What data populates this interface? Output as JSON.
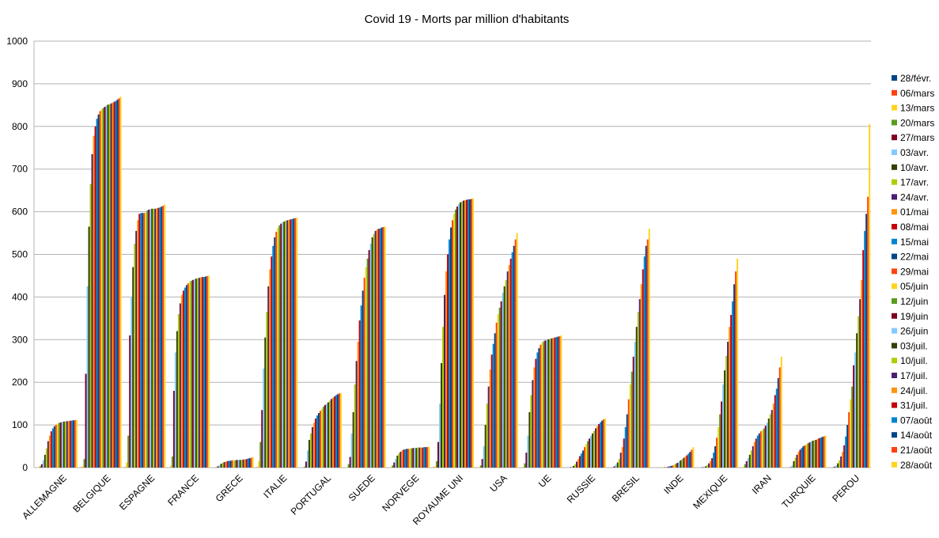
{
  "chart_data": {
    "type": "bar",
    "title": "Covid 19 - Morts par million d'habitants",
    "xlabel": "",
    "ylabel": "",
    "ylim": [
      0,
      1000
    ],
    "yticks": [
      0,
      100,
      200,
      300,
      400,
      500,
      600,
      700,
      800,
      900,
      1000
    ],
    "grid": true,
    "legend_position": "right",
    "categories": [
      "ALLEMAGNE",
      "BELGIQUE",
      "ESPAGNE",
      "FRANCE",
      "GRECE",
      "ITALIE",
      "PORTUGAL",
      "SUEDE",
      "NORVEGE",
      "ROYAUME UNI",
      "USA",
      "UE",
      "RUSSIE",
      "BRESIL",
      "INDE",
      "MEXIQUE",
      "IRAN",
      "TURQUIE",
      "PEROU"
    ],
    "series_names": [
      "28/févr.",
      "06/mars",
      "13/mars",
      "20/mars",
      "27/mars",
      "03/avr.",
      "10/avr.",
      "17/avr.",
      "24/avr.",
      "01/mai",
      "08/mai",
      "15/mai",
      "22/mai",
      "29/mai",
      "05/juin",
      "12/juin",
      "19/juin",
      "26/juin",
      "03/juil.",
      "10/juil.",
      "17/juil.",
      "24/juil.",
      "31/juil.",
      "07/août",
      "14/août",
      "21/août",
      "28/août"
    ],
    "series_colors": [
      "#004586",
      "#ff420e",
      "#ffd320",
      "#579d1c",
      "#7e0021",
      "#83caff",
      "#314004",
      "#aecf00",
      "#4b1f6f",
      "#ff950e",
      "#c5000b",
      "#0084d1",
      "#004586",
      "#ff420e",
      "#ffd320",
      "#579d1c",
      "#7e0021",
      "#83caff",
      "#314004",
      "#aecf00",
      "#4b1f6f",
      "#ff950e",
      "#c5000b",
      "#0084d1",
      "#004586",
      "#ff420e",
      "#ffd320"
    ],
    "values_by_category": [
      [
        0,
        0,
        1,
        3,
        8,
        17,
        30,
        45,
        62,
        75,
        85,
        92,
        97,
        100,
        103,
        105,
        106,
        107,
        108,
        108,
        109,
        109,
        110,
        110,
        111,
        111,
        112
      ],
      [
        0,
        1,
        3,
        20,
        220,
        425,
        565,
        665,
        735,
        778,
        800,
        818,
        828,
        836,
        840,
        843,
        846,
        849,
        851,
        852,
        854,
        856,
        858,
        860,
        863,
        866,
        870
      ],
      [
        0,
        1,
        12,
        75,
        310,
        400,
        470,
        525,
        555,
        580,
        595,
        597,
        597,
        597,
        598,
        603,
        605,
        606,
        607,
        607,
        607,
        608,
        609,
        610,
        612,
        614,
        617
      ],
      [
        0,
        0,
        4,
        26,
        180,
        270,
        320,
        360,
        385,
        405,
        415,
        422,
        428,
        432,
        436,
        438,
        440,
        442,
        443,
        444,
        445,
        446,
        447,
        447,
        448,
        449,
        450
      ],
      [
        0,
        0,
        0,
        1,
        3,
        6,
        9,
        11,
        13,
        14,
        15,
        16,
        16,
        17,
        17,
        17,
        18,
        18,
        18,
        18,
        19,
        19,
        20,
        21,
        22,
        23,
        25
      ],
      [
        0,
        1,
        15,
        60,
        135,
        232,
        305,
        365,
        425,
        465,
        495,
        520,
        540,
        553,
        562,
        568,
        572,
        575,
        577,
        579,
        580,
        581,
        582,
        583,
        584,
        585,
        586
      ],
      [
        0,
        0,
        0,
        2,
        14,
        40,
        65,
        80,
        95,
        105,
        115,
        122,
        128,
        133,
        138,
        143,
        147,
        150,
        153,
        157,
        161,
        164,
        167,
        170,
        172,
        174,
        175
      ],
      [
        0,
        0,
        1,
        8,
        25,
        80,
        130,
        195,
        250,
        295,
        345,
        380,
        415,
        445,
        470,
        490,
        510,
        525,
        540,
        548,
        555,
        558,
        560,
        561,
        563,
        564,
        565
      ],
      [
        0,
        0,
        1,
        5,
        12,
        20,
        28,
        33,
        37,
        40,
        42,
        43,
        44,
        44,
        45,
        45,
        46,
        46,
        46,
        47,
        47,
        47,
        47,
        48,
        48,
        48,
        49
      ],
      [
        0,
        1,
        3,
        15,
        60,
        150,
        245,
        330,
        405,
        460,
        500,
        535,
        563,
        580,
        595,
        605,
        612,
        618,
        622,
        624,
        626,
        627,
        628,
        629,
        629,
        630,
        631
      ],
      [
        0,
        0,
        1,
        5,
        20,
        50,
        100,
        150,
        190,
        230,
        265,
        290,
        315,
        340,
        360,
        375,
        390,
        410,
        425,
        440,
        460,
        475,
        490,
        505,
        520,
        535,
        550
      ],
      [
        0,
        0,
        2,
        10,
        35,
        75,
        130,
        170,
        205,
        235,
        255,
        270,
        280,
        288,
        293,
        296,
        298,
        300,
        301,
        302,
        303,
        304,
        305,
        306,
        307,
        308,
        310
      ],
      [
        0,
        0,
        0,
        0,
        1,
        2,
        4,
        8,
        14,
        20,
        27,
        33,
        40,
        48,
        55,
        62,
        68,
        74,
        80,
        86,
        92,
        97,
        102,
        106,
        110,
        113,
        115
      ],
      [
        0,
        0,
        0,
        1,
        3,
        7,
        12,
        20,
        35,
        48,
        68,
        95,
        125,
        160,
        195,
        225,
        260,
        295,
        330,
        365,
        395,
        430,
        465,
        495,
        520,
        535,
        560
      ],
      [
        0,
        0,
        0,
        0,
        0,
        0,
        0,
        1,
        1,
        1,
        2,
        3,
        4,
        5,
        7,
        9,
        11,
        14,
        17,
        20,
        23,
        26,
        29,
        33,
        37,
        42,
        48
      ],
      [
        0,
        0,
        0,
        0,
        1,
        2,
        3,
        6,
        10,
        15,
        22,
        35,
        50,
        70,
        95,
        125,
        155,
        195,
        228,
        262,
        295,
        330,
        358,
        390,
        430,
        460,
        490
      ],
      [
        0,
        0,
        2,
        8,
        15,
        22,
        30,
        40,
        50,
        60,
        68,
        75,
        80,
        85,
        88,
        92,
        98,
        105,
        115,
        125,
        135,
        150,
        170,
        185,
        210,
        235,
        260
      ],
      [
        0,
        0,
        0,
        0,
        1,
        5,
        15,
        23,
        30,
        37,
        42,
        46,
        50,
        52,
        55,
        57,
        59,
        61,
        63,
        64,
        65,
        67,
        69,
        70,
        72,
        73,
        75
      ],
      [
        0,
        0,
        0,
        1,
        2,
        5,
        10,
        17,
        26,
        37,
        52,
        73,
        100,
        130,
        160,
        190,
        240,
        270,
        315,
        355,
        395,
        440,
        510,
        555,
        595,
        635,
        805
      ]
    ],
    "ytick_format": "integer"
  }
}
